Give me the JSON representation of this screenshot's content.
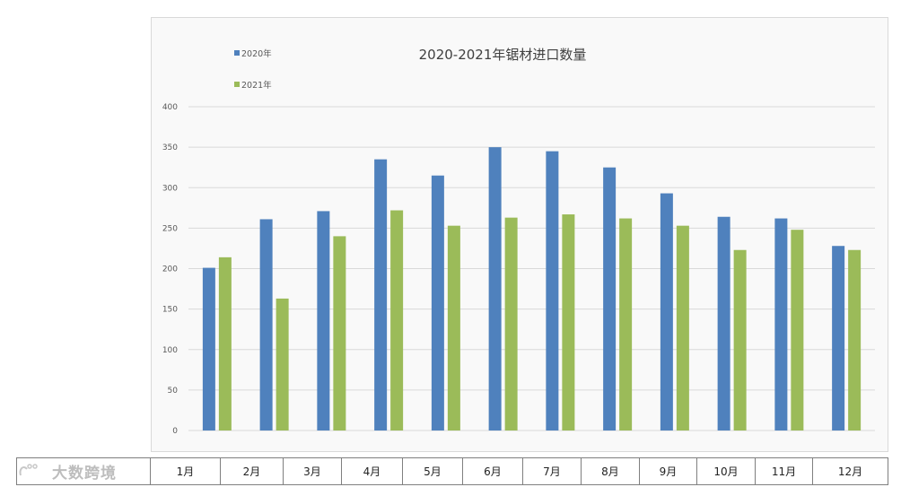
{
  "chart_data": {
    "type": "bar",
    "title": "2020-2021年锯材进口数量",
    "categories": [
      "1月",
      "2月",
      "3月",
      "4月",
      "5月",
      "6月",
      "7月",
      "8月",
      "9月",
      "10月",
      "11月",
      "12月"
    ],
    "series": [
      {
        "name": "2020年",
        "color": "#4f81bd",
        "values": [
          201,
          261,
          271,
          335,
          315,
          350,
          345,
          325,
          293,
          264,
          262,
          228
        ]
      },
      {
        "name": "2021年",
        "color": "#9bbb59",
        "values": [
          214,
          163,
          240,
          272,
          253,
          263,
          267,
          262,
          253,
          223,
          248,
          223
        ]
      }
    ],
    "yticks": [
      0,
      50,
      100,
      150,
      200,
      250,
      300,
      350,
      400
    ],
    "ylim": [
      0,
      400
    ],
    "grid": true,
    "legend_position": "top-left"
  },
  "table": {
    "months": [
      "1月",
      "2月",
      "3月",
      "4月",
      "5月",
      "6月",
      "7月",
      "8月",
      "9月",
      "10月",
      "11月",
      "12月"
    ]
  },
  "watermark": {
    "text": "大数跨境"
  }
}
